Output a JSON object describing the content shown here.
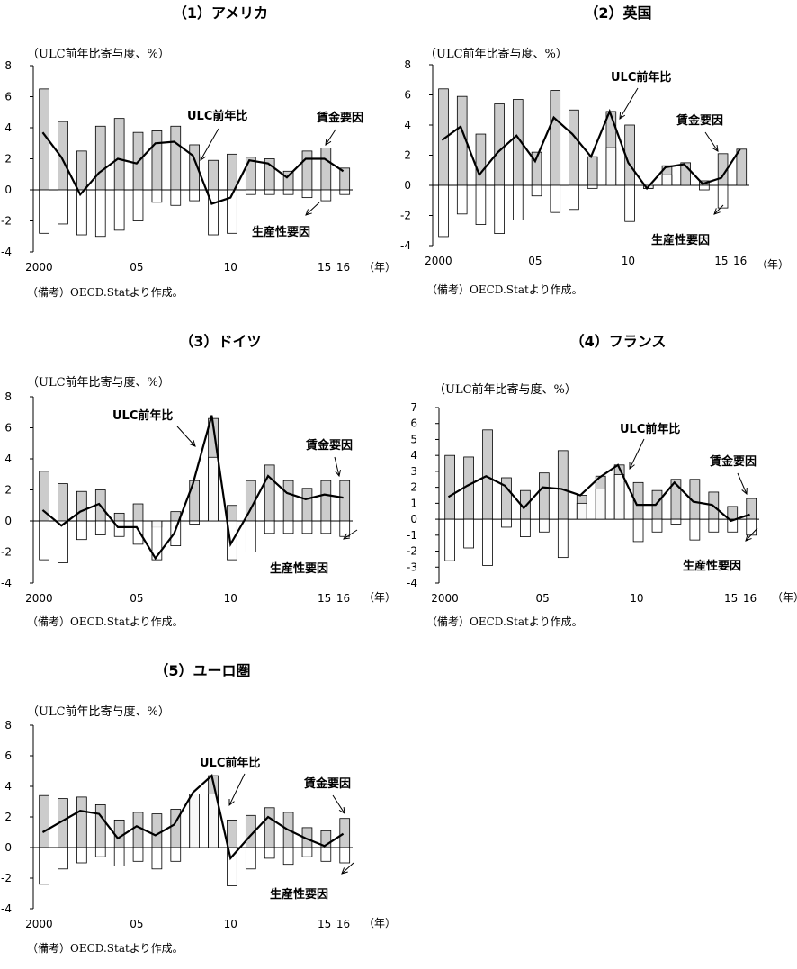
{
  "chart_data": [
    {
      "type": "bar+line",
      "title": "（1）アメリカ",
      "unit_label": "（ULC前年比寄与度、%）",
      "ylim": [
        -4,
        8
      ],
      "yticks": [
        -4,
        -2,
        0,
        2,
        4,
        6,
        8
      ],
      "x_tick_labels": {
        "2000": "2000",
        "2005": "05",
        "2010": "10",
        "2015": "15",
        "2016": "16"
      },
      "x_unit": "（年）",
      "x": [
        2000,
        2001,
        2002,
        2003,
        2004,
        2005,
        2006,
        2007,
        2008,
        2009,
        2010,
        2011,
        2012,
        2013,
        2014,
        2015,
        2016
      ],
      "series": [
        {
          "name": "賃金要因",
          "kind": "bar",
          "values": [
            6.5,
            4.4,
            2.5,
            4.1,
            4.6,
            3.7,
            3.8,
            4.1,
            2.9,
            1.9,
            2.3,
            2.1,
            2.0,
            1.2,
            2.5,
            2.7,
            1.4
          ]
        },
        {
          "name": "生産性要因",
          "kind": "bar",
          "values": [
            -2.8,
            -2.2,
            -2.9,
            -3.0,
            -2.6,
            -2.0,
            -0.8,
            -1.0,
            -0.7,
            -2.9,
            -2.8,
            -0.3,
            -0.3,
            -0.3,
            -0.5,
            -0.7,
            -0.3
          ]
        },
        {
          "name": "ULC前年比",
          "kind": "line",
          "values": [
            3.7,
            2.1,
            -0.3,
            1.1,
            2.0,
            1.7,
            3.0,
            3.1,
            2.2,
            -0.9,
            -0.5,
            1.9,
            1.7,
            0.8,
            2.0,
            2.0,
            1.2
          ]
        }
      ],
      "annotations": {
        "line": "ULC前年比",
        "wage": "賃金要因",
        "prod": "生産性要因"
      },
      "source": "（備考）OECD.Statより作成。"
    },
    {
      "type": "bar+line",
      "title": "（2）英国",
      "unit_label": "（ULC前年比寄与度、%）",
      "ylim": [
        -4,
        8
      ],
      "yticks": [
        -4,
        -2,
        0,
        2,
        4,
        6,
        8
      ],
      "x_tick_labels": {
        "2000": "2000",
        "2005": "05",
        "2010": "10",
        "2015": "15",
        "2016": "16"
      },
      "x_unit": "（年）",
      "x": [
        2000,
        2001,
        2002,
        2003,
        2004,
        2005,
        2006,
        2007,
        2008,
        2009,
        2010,
        2011,
        2012,
        2013,
        2014,
        2015,
        2016
      ],
      "series": [
        {
          "name": "賃金要因",
          "kind": "bar",
          "values": [
            6.4,
            5.9,
            3.4,
            5.4,
            5.7,
            2.2,
            6.3,
            5.0,
            1.9,
            4.9,
            4.0,
            -0.2,
            1.3,
            1.5,
            0.3,
            2.1,
            2.4
          ]
        },
        {
          "name": "生産性要因",
          "kind": "bar",
          "values": [
            -3.4,
            -1.9,
            -2.6,
            -3.2,
            -2.3,
            -0.7,
            -1.8,
            -1.6,
            -0.2,
            2.5,
            -2.4,
            -0.2,
            0.7,
            0.0,
            -0.3,
            -1.5,
            0.0
          ]
        },
        {
          "name": "ULC前年比",
          "kind": "line",
          "values": [
            3.0,
            3.9,
            0.7,
            2.2,
            3.3,
            1.6,
            4.5,
            3.4,
            1.9,
            4.9,
            1.5,
            -0.2,
            1.2,
            1.4,
            0.1,
            0.5,
            2.4
          ]
        }
      ],
      "annotations": {
        "line": "ULC前年比",
        "wage": "賃金要因",
        "prod": "生産性要因"
      },
      "source": "（備考）OECD.Statより作成。"
    },
    {
      "type": "bar+line",
      "title": "（3）ドイツ",
      "unit_label": "（ULC前年比寄与度、%）",
      "ylim": [
        -4,
        8
      ],
      "yticks": [
        -4,
        -2,
        0,
        2,
        4,
        6,
        8
      ],
      "x_tick_labels": {
        "2000": "2000",
        "2005": "05",
        "2010": "10",
        "2015": "15",
        "2016": "16"
      },
      "x_unit": "（年）",
      "x": [
        2000,
        2001,
        2002,
        2003,
        2004,
        2005,
        2006,
        2007,
        2008,
        2009,
        2010,
        2011,
        2012,
        2013,
        2014,
        2015,
        2016
      ],
      "series": [
        {
          "name": "賃金要因",
          "kind": "bar",
          "values": [
            3.2,
            2.4,
            1.9,
            2.0,
            0.5,
            1.1,
            -0.4,
            0.6,
            2.6,
            6.6,
            1.0,
            2.6,
            3.6,
            2.6,
            2.1,
            2.6,
            2.6
          ]
        },
        {
          "name": "生産性要因",
          "kind": "bar",
          "values": [
            -2.5,
            -2.7,
            -1.2,
            -0.9,
            -1.0,
            -1.5,
            -2.5,
            -1.6,
            -0.2,
            4.1,
            -2.5,
            -2.0,
            -0.8,
            -0.8,
            -0.8,
            -0.8,
            -1.0
          ]
        },
        {
          "name": "ULC前年比",
          "kind": "line",
          "values": [
            0.7,
            -0.3,
            0.6,
            1.1,
            -0.4,
            -0.4,
            -2.4,
            -0.8,
            2.4,
            6.8,
            -1.5,
            0.6,
            2.9,
            1.8,
            1.4,
            1.7,
            1.5
          ]
        }
      ],
      "annotations": {
        "line": "ULC前年比",
        "wage": "賃金要因",
        "prod": "生産性要因"
      },
      "source": "（備考）OECD.Statより作成。"
    },
    {
      "type": "bar+line",
      "title": "（4）フランス",
      "unit_label": "（ULC前年比寄与度、%）",
      "ylim": [
        -4,
        7
      ],
      "yticks": [
        -4,
        -3,
        -2,
        -1,
        0,
        1,
        2,
        3,
        4,
        5,
        6,
        7
      ],
      "x_tick_labels": {
        "2000": "2000",
        "2005": "05",
        "2010": "10",
        "2015": "15",
        "2016": "16"
      },
      "x_unit": "（年）",
      "x": [
        2000,
        2001,
        2002,
        2003,
        2004,
        2005,
        2006,
        2007,
        2008,
        2009,
        2010,
        2011,
        2012,
        2013,
        2014,
        2015,
        2016
      ],
      "series": [
        {
          "name": "賃金要因",
          "kind": "bar",
          "values": [
            4.0,
            3.9,
            5.6,
            2.6,
            1.8,
            2.9,
            4.3,
            1.5,
            2.7,
            3.4,
            2.3,
            1.8,
            2.5,
            2.5,
            1.7,
            0.8,
            1.3
          ]
        },
        {
          "name": "生産性要因",
          "kind": "bar",
          "values": [
            -2.6,
            -1.8,
            -2.9,
            -0.5,
            -1.1,
            -0.8,
            -2.4,
            1.0,
            1.9,
            2.8,
            -1.4,
            -0.8,
            -0.3,
            -1.3,
            -0.8,
            -0.8,
            -1.0
          ]
        },
        {
          "name": "ULC前年比",
          "kind": "line",
          "values": [
            1.4,
            2.1,
            2.7,
            2.1,
            0.7,
            2.0,
            1.9,
            1.5,
            2.6,
            3.4,
            0.9,
            0.9,
            2.3,
            1.1,
            0.9,
            -0.1,
            0.3
          ]
        }
      ],
      "annotations": {
        "line": "ULC前年比",
        "wage": "賃金要因",
        "prod": "生産性要因"
      },
      "source": "（備考）OECD.Statより作成。"
    },
    {
      "type": "bar+line",
      "title": "（5）ユーロ圏",
      "unit_label": "（ULC前年比寄与度、%）",
      "ylim": [
        -4,
        8
      ],
      "yticks": [
        -4,
        -2,
        0,
        2,
        4,
        6,
        8
      ],
      "x_tick_labels": {
        "2000": "2000",
        "2005": "05",
        "2010": "10",
        "2015": "15",
        "2016": "16"
      },
      "x_unit": "（年）",
      "x": [
        2000,
        2001,
        2002,
        2003,
        2004,
        2005,
        2006,
        2007,
        2008,
        2009,
        2010,
        2011,
        2012,
        2013,
        2014,
        2015,
        2016
      ],
      "series": [
        {
          "name": "賃金要因",
          "kind": "bar",
          "values": [
            3.4,
            3.2,
            3.3,
            2.8,
            1.8,
            2.3,
            2.2,
            2.5,
            3.5,
            4.7,
            1.8,
            2.1,
            2.6,
            2.3,
            1.3,
            1.1,
            1.9
          ]
        },
        {
          "name": "生産性要因",
          "kind": "bar",
          "values": [
            -2.4,
            -1.4,
            -1.0,
            -0.6,
            -1.2,
            -0.9,
            -1.4,
            -0.9,
            3.5,
            3.5,
            -2.5,
            -1.4,
            -0.7,
            -1.1,
            -0.6,
            -0.9,
            -1.0
          ]
        },
        {
          "name": "ULC前年比",
          "kind": "line",
          "values": [
            1.0,
            1.7,
            2.4,
            2.2,
            0.6,
            1.4,
            0.8,
            1.5,
            3.6,
            4.7,
            -0.7,
            0.7,
            2.0,
            1.2,
            0.6,
            0.1,
            0.9
          ]
        }
      ],
      "annotations": {
        "line": "ULC前年比",
        "wage": "賃金要因",
        "prod": "生産性要因"
      },
      "source": "（備考）OECD.Statより作成。"
    }
  ],
  "colors": {
    "wage_bar": "#cccccc",
    "prod_bar": "#ffffff",
    "bar_stroke": "#000000",
    "line": "#000000"
  }
}
